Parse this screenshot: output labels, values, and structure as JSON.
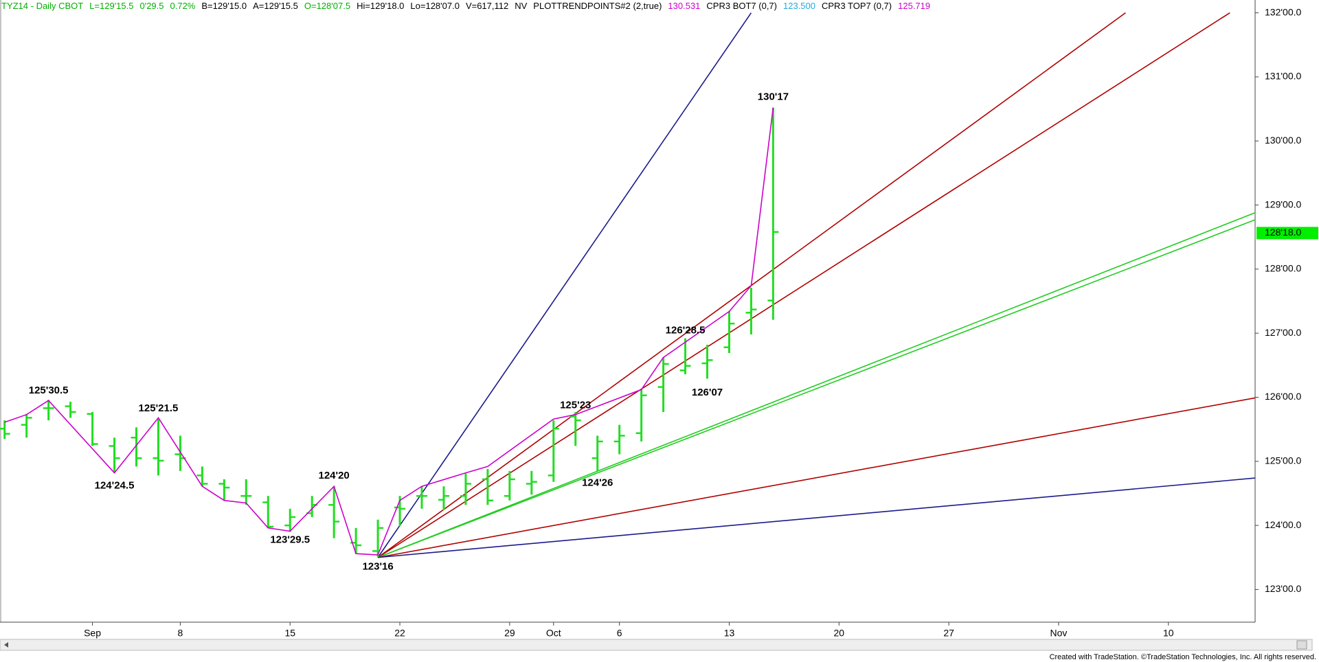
{
  "chart_data": {
    "type": "ohlc",
    "header": [
      {
        "text": "TYZ14 - Daily  CBOT",
        "color": "#00b000"
      },
      {
        "text": "L=129'15.5",
        "color": "#00b000"
      },
      {
        "text": "0'29.5",
        "color": "#00b000"
      },
      {
        "text": "0.72%",
        "color": "#00b000"
      },
      {
        "text": "B=129'15.0",
        "color": "#000000"
      },
      {
        "text": "A=129'15.5",
        "color": "#000000"
      },
      {
        "text": "O=128'07.5",
        "color": "#00b000"
      },
      {
        "text": "Hi=129'18.0",
        "color": "#000000"
      },
      {
        "text": "Lo=128'07.0",
        "color": "#000000"
      },
      {
        "text": "V=617,112",
        "color": "#000000"
      },
      {
        "text": "NV",
        "color": "#000000"
      },
      {
        "text": "PLOTTRENDPOINTS#2 (2,true)",
        "color": "#000000"
      },
      {
        "text": "130.531",
        "color": "#cc00cc"
      },
      {
        "text": "CPR3 BOT7 (0,7)",
        "color": "#000000"
      },
      {
        "text": "123.500",
        "color": "#22aadd"
      },
      {
        "text": "CPR3 TOP7 (0,7)",
        "color": "#000000"
      },
      {
        "text": "125.719",
        "color": "#cc00cc"
      }
    ],
    "color": "#22dd22",
    "x": [
      -4,
      -3,
      -2,
      -1,
      0,
      1,
      2,
      3,
      4,
      5,
      6,
      7,
      8,
      9,
      10,
      11,
      12,
      13,
      14,
      15,
      16,
      17,
      18,
      19,
      20,
      21,
      22,
      23,
      24,
      25,
      26,
      27,
      28,
      29,
      30,
      31
    ],
    "open": [
      125.51,
      125.57,
      125.83,
      125.86,
      125.74,
      125.24,
      125.37,
      125.05,
      125.11,
      124.78,
      124.65,
      124.46,
      124.36,
      124.0,
      124.19,
      124.32,
      123.73,
      123.6,
      124.28,
      124.46,
      124.4,
      124.46,
      124.72,
      124.46,
      124.65,
      124.78,
      125.7,
      125.05,
      125.31,
      125.44,
      126.16,
      126.42,
      126.53,
      126.78,
      127.32,
      127.51
    ],
    "high": [
      125.64,
      125.74,
      125.96,
      125.93,
      125.77,
      125.37,
      125.53,
      125.66,
      125.4,
      124.92,
      124.72,
      124.72,
      124.46,
      124.26,
      124.46,
      124.61,
      123.96,
      124.09,
      124.46,
      124.61,
      124.61,
      124.81,
      124.88,
      124.85,
      124.85,
      125.64,
      125.77,
      125.4,
      125.57,
      126.12,
      126.62,
      126.92,
      126.82,
      127.34,
      127.71,
      130.52
    ],
    "low": [
      125.35,
      125.37,
      125.64,
      125.68,
      125.24,
      124.82,
      124.92,
      124.78,
      124.85,
      124.61,
      124.39,
      124.32,
      123.96,
      123.9,
      124.13,
      123.8,
      123.56,
      123.51,
      123.99,
      124.26,
      124.24,
      124.32,
      124.32,
      124.39,
      124.48,
      124.68,
      125.24,
      124.85,
      125.11,
      125.31,
      125.77,
      126.36,
      126.29,
      126.69,
      126.98,
      127.21
    ],
    "close": [
      125.43,
      125.68,
      125.83,
      125.77,
      125.27,
      125.05,
      125.05,
      125.01,
      125.05,
      124.65,
      124.59,
      124.46,
      123.98,
      124.13,
      124.32,
      124.06,
      123.69,
      123.96,
      124.26,
      124.46,
      124.46,
      124.65,
      124.39,
      124.72,
      124.68,
      125.51,
      125.64,
      125.31,
      125.4,
      126.03,
      126.52,
      126.49,
      126.58,
      127.15,
      127.37,
      128.58
    ],
    "trend_points": {
      "color": "#cc00cc",
      "x": [
        -4,
        -3,
        -2,
        1,
        3,
        5,
        6,
        7,
        8,
        9,
        11,
        12,
        13,
        14,
        15,
        17,
        18,
        21,
        22,
        25,
        26,
        29,
        30,
        31
      ],
      "y": [
        125.61,
        125.73,
        125.95,
        124.82,
        125.68,
        124.61,
        124.39,
        124.35,
        123.96,
        123.91,
        124.61,
        123.56,
        123.54,
        124.39,
        124.61,
        124.82,
        124.92,
        125.66,
        125.73,
        126.12,
        126.62,
        127.34,
        127.74,
        130.52
      ]
    },
    "lines": [
      {
        "color": "#1a1a8c",
        "x": [
          13,
          30.0
        ],
        "y": [
          123.5,
          132.0
        ]
      },
      {
        "color": "#b00000",
        "x": [
          13,
          47.05
        ],
        "y": [
          123.5,
          132.0
        ]
      },
      {
        "color": "#b00000",
        "x": [
          13,
          51.8
        ],
        "y": [
          123.5,
          132.0
        ]
      },
      {
        "color": "#22cc22",
        "x": [
          13,
          52.95
        ],
        "y": [
          123.5,
          128.88
        ]
      },
      {
        "color": "#22cc22",
        "x": [
          13,
          52.95
        ],
        "y": [
          123.5,
          128.77
        ]
      },
      {
        "color": "#b00000",
        "x": [
          13,
          52.95
        ],
        "y": [
          123.5,
          125.99
        ]
      },
      {
        "color": "#1a1a8c",
        "x": [
          13,
          52.95
        ],
        "y": [
          123.5,
          124.74
        ]
      }
    ],
    "annotations": [
      {
        "text": "125'30.5",
        "x": -2,
        "y": 125.953,
        "position": "above"
      },
      {
        "text": "124'24.5",
        "x": 1,
        "y": 124.766,
        "position": "below"
      },
      {
        "text": "125'21.5",
        "x": 3,
        "y": 125.672,
        "position": "above"
      },
      {
        "text": "124'20",
        "x": 11,
        "y": 124.625,
        "position": "above"
      },
      {
        "text": "123'29.5",
        "x": 9,
        "y": 123.922,
        "position": "below"
      },
      {
        "text": "123'16",
        "x": 13,
        "y": 123.5,
        "position": "below"
      },
      {
        "text": "125'23",
        "x": 22,
        "y": 125.719,
        "position": "above"
      },
      {
        "text": "124'26",
        "x": 23,
        "y": 124.8125,
        "position": "below"
      },
      {
        "text": "126'28.5",
        "x": 27,
        "y": 126.891,
        "position": "above"
      },
      {
        "text": "126'07",
        "x": 28,
        "y": 126.219,
        "position": "below"
      },
      {
        "text": "130'17",
        "x": 31,
        "y": 130.531,
        "position": "above"
      }
    ],
    "last_price": {
      "value": 128.5625,
      "label": "128'18.0",
      "color": "#00ee00"
    },
    "xlim": [
      -4.21,
      52.95
    ],
    "xticks": [
      {
        "value": 0,
        "label": "Sep"
      },
      {
        "value": 4,
        "label": "8"
      },
      {
        "value": 9,
        "label": "15"
      },
      {
        "value": 14,
        "label": "22"
      },
      {
        "value": 19,
        "label": "29"
      },
      {
        "value": 21,
        "label": "Oct"
      },
      {
        "value": 24,
        "label": "6"
      },
      {
        "value": 29,
        "label": "13"
      },
      {
        "value": 34,
        "label": "20"
      },
      {
        "value": 39,
        "label": "27"
      },
      {
        "value": 44,
        "label": "Nov"
      },
      {
        "value": 49,
        "label": "10"
      }
    ],
    "ylim": [
      122.49,
      132.2
    ],
    "yticks": [
      {
        "value": 123,
        "label": "123'00.0"
      },
      {
        "value": 124,
        "label": "124'00.0"
      },
      {
        "value": 125,
        "label": "125'00.0"
      },
      {
        "value": 126,
        "label": "126'00.0"
      },
      {
        "value": 127,
        "label": "127'00.0"
      },
      {
        "value": 128,
        "label": "128'00.0"
      },
      {
        "value": 129,
        "label": "129'00.0"
      },
      {
        "value": 130,
        "label": "130'00.0"
      },
      {
        "value": 131,
        "label": "131'00.0"
      },
      {
        "value": 132,
        "label": "132'00.0"
      }
    ],
    "footer": "Created with TradeStation. ©TradeStation Technologies, Inc. All rights reserved."
  }
}
